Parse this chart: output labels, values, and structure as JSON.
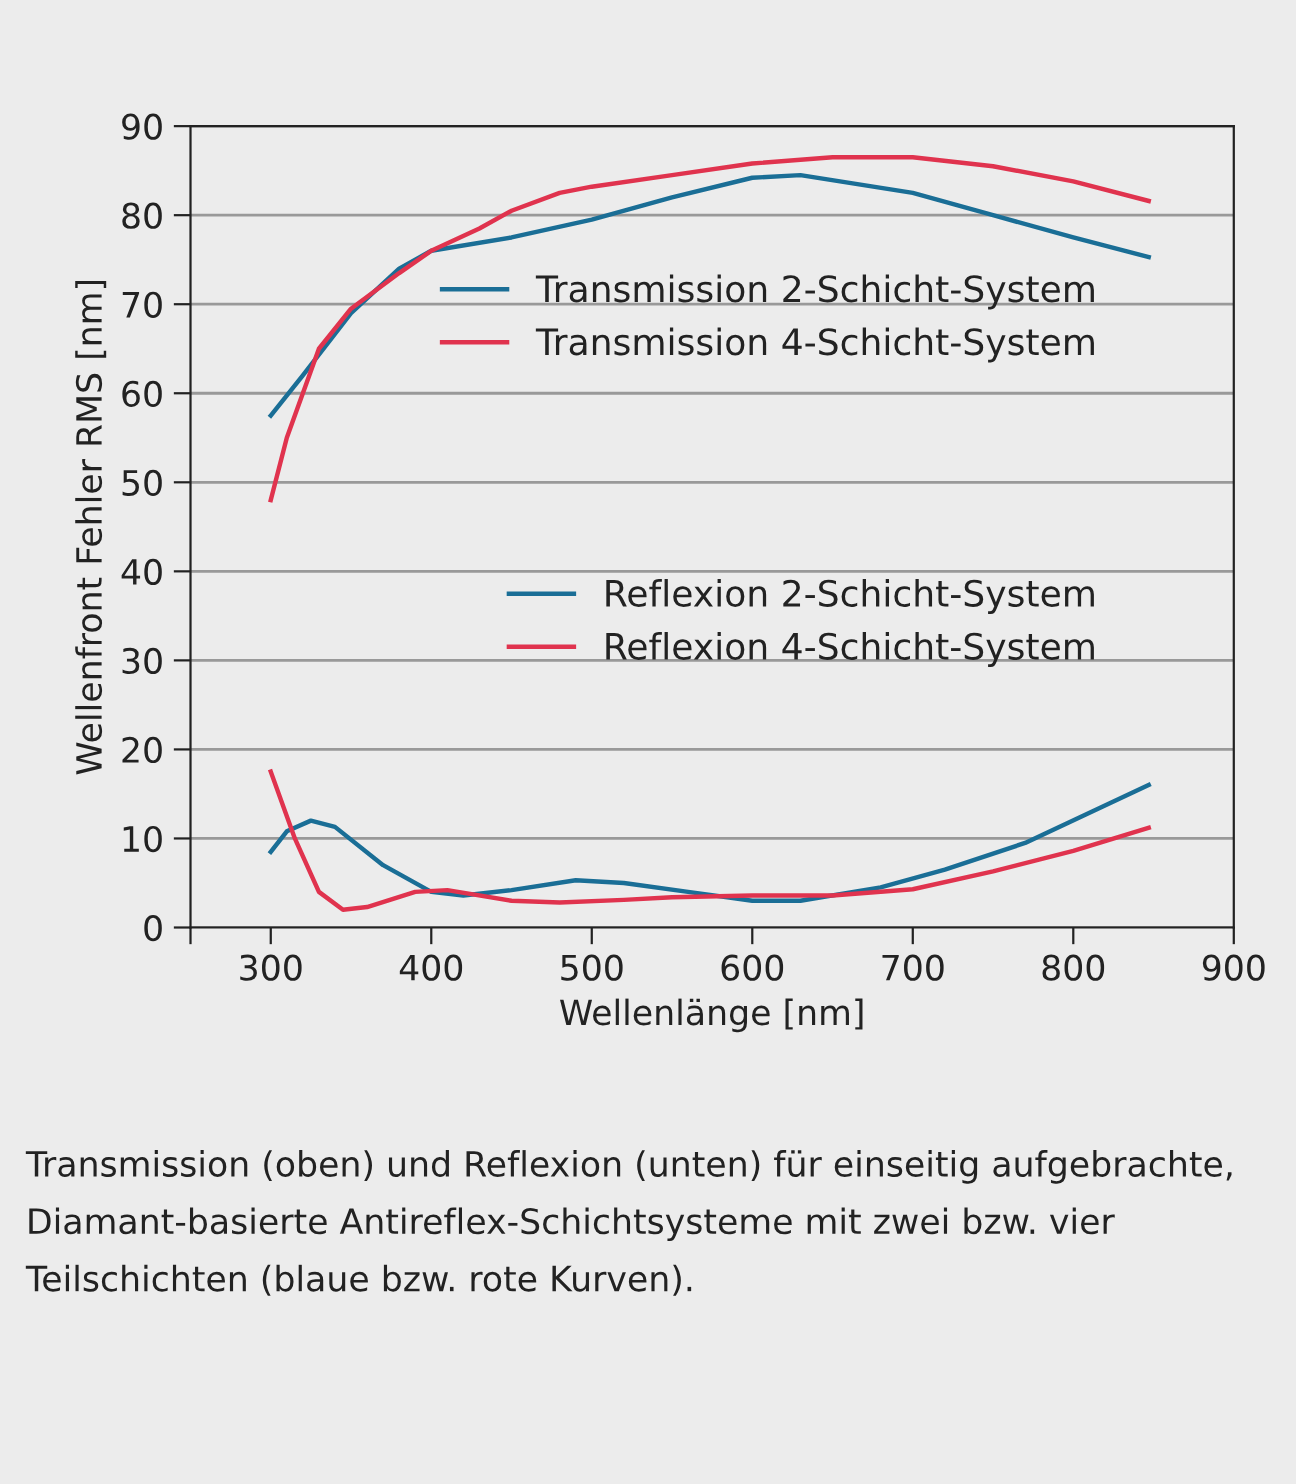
{
  "chart_data": {
    "type": "line",
    "xlabel": "Wellenlänge [nm]",
    "ylabel": "Wellenfront Fehler RMS [nm]",
    "xlim": [
      250,
      900
    ],
    "xticks": [
      {
        "value": 250,
        "label": null
      },
      300,
      400,
      500,
      600,
      700,
      800,
      900
    ],
    "ylim": [
      0,
      90
    ],
    "yticks": [
      0,
      10,
      20,
      30,
      40,
      50,
      60,
      70,
      80,
      90
    ],
    "grid": "y",
    "legend": "center right",
    "marker": "none",
    "line_style": "solid",
    "series": [
      {
        "name": "Transmission 2-Schicht-System",
        "color": "#1a6e96",
        "x": [
          300,
          320,
          350,
          380,
          400,
          450,
          500,
          550,
          600,
          630,
          700,
          750,
          800,
          847
        ],
        "values": [
          57.5,
          62,
          69,
          74,
          76,
          77.5,
          79.5,
          82,
          84.2,
          84.5,
          82.5,
          80,
          77.5,
          75.3
        ]
      },
      {
        "name": "Transmission 4-Schicht-System",
        "color": "#e0334e",
        "x": [
          300,
          310,
          330,
          350,
          380,
          400,
          430,
          450,
          480,
          500,
          550,
          600,
          650,
          700,
          750,
          800,
          847
        ],
        "values": [
          48,
          55,
          65,
          69.5,
          73.5,
          76,
          78.5,
          80.5,
          82.5,
          83.2,
          84.5,
          85.8,
          86.5,
          86.5,
          85.5,
          83.8,
          81.6
        ]
      },
      {
        "name": "Reflexion 2-Schicht-System",
        "color": "#1a6e96",
        "x": [
          300,
          310,
          325,
          340,
          370,
          400,
          420,
          450,
          490,
          520,
          560,
          600,
          630,
          680,
          720,
          770,
          847
        ],
        "values": [
          8.5,
          10.8,
          12,
          11.3,
          7,
          4,
          3.6,
          4.2,
          5.3,
          5,
          4,
          3,
          3,
          4.5,
          6.5,
          9.5,
          16
        ]
      },
      {
        "name": "Reflexion 4-Schicht-System",
        "color": "#e0334e",
        "x": [
          300,
          315,
          330,
          345,
          360,
          390,
          410,
          450,
          480,
          520,
          550,
          600,
          650,
          700,
          750,
          800,
          847
        ],
        "values": [
          17.5,
          10,
          4,
          2,
          2.3,
          4,
          4.2,
          3,
          2.8,
          3.1,
          3.4,
          3.6,
          3.6,
          4.3,
          6.3,
          8.6,
          11.2
        ]
      }
    ],
    "annotations": [
      "Transmission (oben) und Reflexion (unten) für einseitig aufgebrachte, Diamant-basierte Antireflex-Schichtsysteme mit zwei bzw. vier Teilschichten (blaue bzw. rote Kurven)."
    ]
  }
}
